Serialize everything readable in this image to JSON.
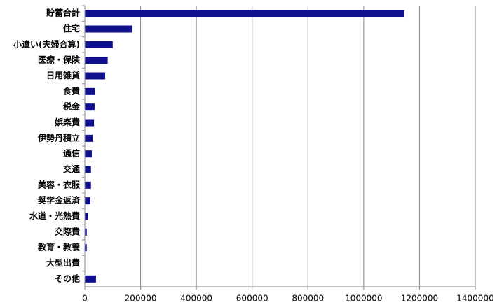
{
  "chart_data": {
    "type": "bar",
    "orientation": "horizontal",
    "categories": [
      "貯蓄合計",
      "住宅",
      "小遣い(夫婦合算)",
      "医療・保険",
      "日用雑貨",
      "食費",
      "税金",
      "娯楽費",
      "伊勢丹積立",
      "通信",
      "交通",
      "美容・衣服",
      "奨学金返済",
      "水道・光熱費",
      "交際費",
      "教育・教養",
      "大型出費",
      "その他"
    ],
    "values": [
      1145000,
      170000,
      100000,
      82000,
      73000,
      37000,
      35000,
      33000,
      28000,
      25000,
      22000,
      22000,
      20000,
      12000,
      7000,
      7000,
      0,
      40000
    ],
    "color": "#10108c",
    "xlim": [
      0,
      1400000
    ],
    "xticks": [
      0,
      200000,
      400000,
      600000,
      800000,
      1000000,
      1200000,
      1400000
    ],
    "grid": true
  }
}
